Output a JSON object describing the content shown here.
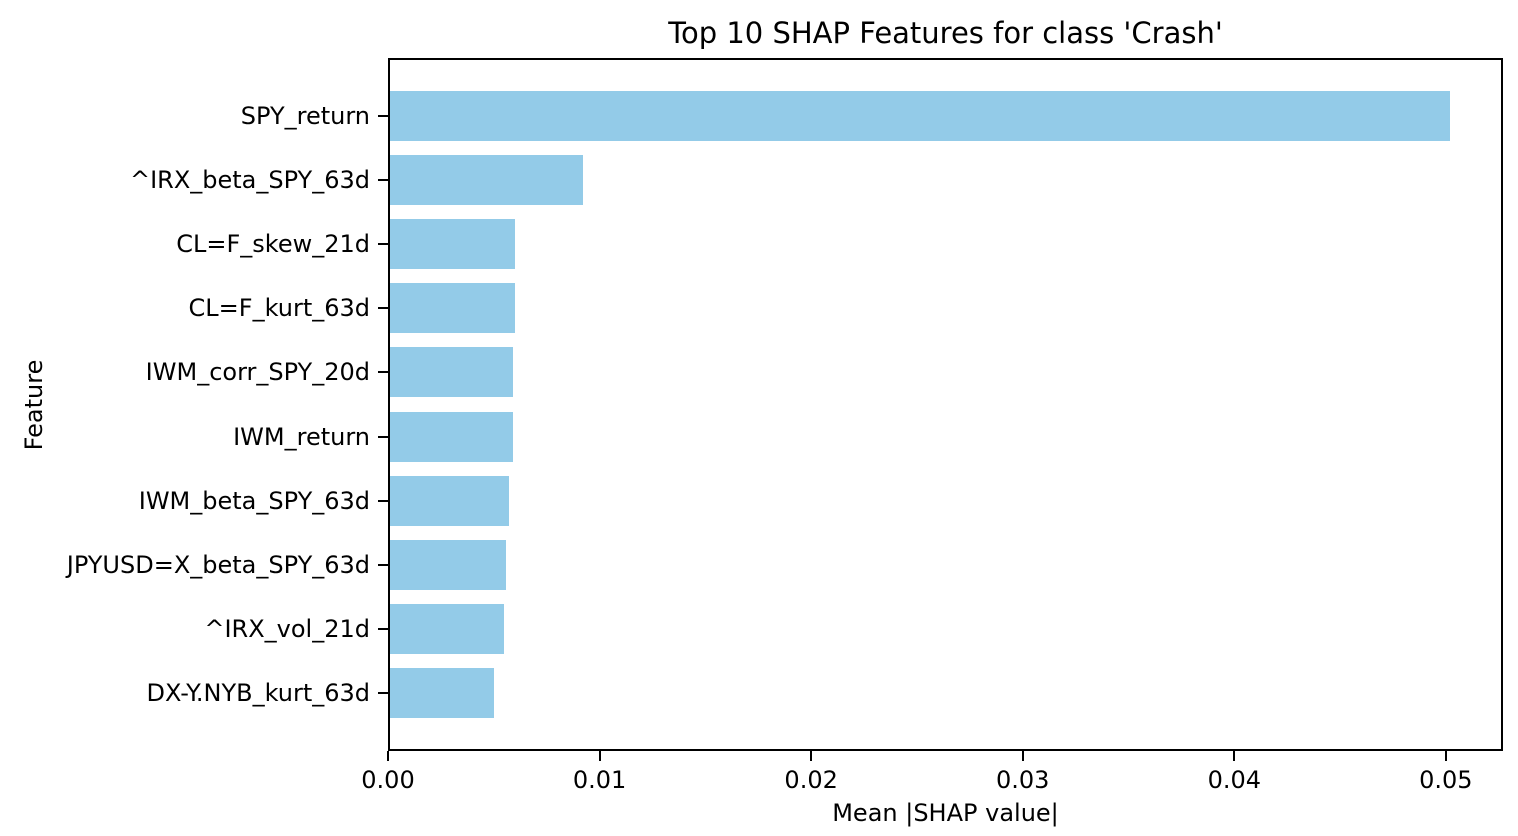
{
  "chart_data": {
    "type": "bar",
    "orientation": "horizontal",
    "title": "Top 10 SHAP Features for class 'Crash'",
    "xlabel": "Mean |SHAP value|",
    "ylabel": "Feature",
    "categories": [
      "SPY_return",
      "^IRX_beta_SPY_63d",
      "CL=F_skew_21d",
      "CL=F_kurt_63d",
      "IWM_corr_SPY_20d",
      "IWM_return",
      "IWM_beta_SPY_63d",
      "JPYUSD=X_beta_SPY_63d",
      "^IRX_vol_21d",
      "DX-Y.NYB_kurt_63d"
    ],
    "values": [
      0.0502,
      0.0092,
      0.006,
      0.006,
      0.0059,
      0.0059,
      0.0057,
      0.0056,
      0.0055,
      0.005
    ],
    "xlim": [
      0.0,
      0.0527
    ],
    "xticks": [
      {
        "value": 0.0,
        "label": "0.00"
      },
      {
        "value": 0.01,
        "label": "0.01"
      },
      {
        "value": 0.02,
        "label": "0.02"
      },
      {
        "value": 0.03,
        "label": "0.03"
      },
      {
        "value": 0.04,
        "label": "0.04"
      },
      {
        "value": 0.05,
        "label": "0.05"
      }
    ],
    "bar_color": "#93CBE8",
    "spine_color": "#000000",
    "grid": false,
    "legend": null
  }
}
